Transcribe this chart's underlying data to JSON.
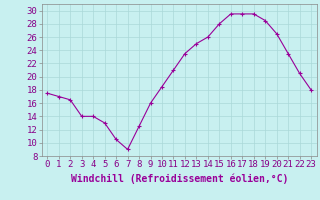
{
  "x": [
    0,
    1,
    2,
    3,
    4,
    5,
    6,
    7,
    8,
    9,
    10,
    11,
    12,
    13,
    14,
    15,
    16,
    17,
    18,
    19,
    20,
    21,
    22,
    23
  ],
  "y": [
    17.5,
    17.0,
    16.5,
    14.0,
    14.0,
    13.0,
    10.5,
    9.0,
    12.5,
    16.0,
    18.5,
    21.0,
    23.5,
    25.0,
    26.0,
    28.0,
    29.5,
    29.5,
    29.5,
    28.5,
    26.5,
    23.5,
    20.5,
    18.0
  ],
  "line_color": "#990099",
  "marker": "+",
  "marker_size": 3,
  "background_color": "#c8f0f0",
  "grid_color": "#aad8d8",
  "xlabel": "Windchill (Refroidissement éolien,°C)",
  "xlabel_fontsize": 7,
  "tick_fontsize": 6.5,
  "xlim": [
    -0.5,
    23.5
  ],
  "ylim": [
    8,
    31
  ],
  "yticks": [
    8,
    10,
    12,
    14,
    16,
    18,
    20,
    22,
    24,
    26,
    28,
    30
  ],
  "xticks": [
    0,
    1,
    2,
    3,
    4,
    5,
    6,
    7,
    8,
    9,
    10,
    11,
    12,
    13,
    14,
    15,
    16,
    17,
    18,
    19,
    20,
    21,
    22,
    23
  ]
}
